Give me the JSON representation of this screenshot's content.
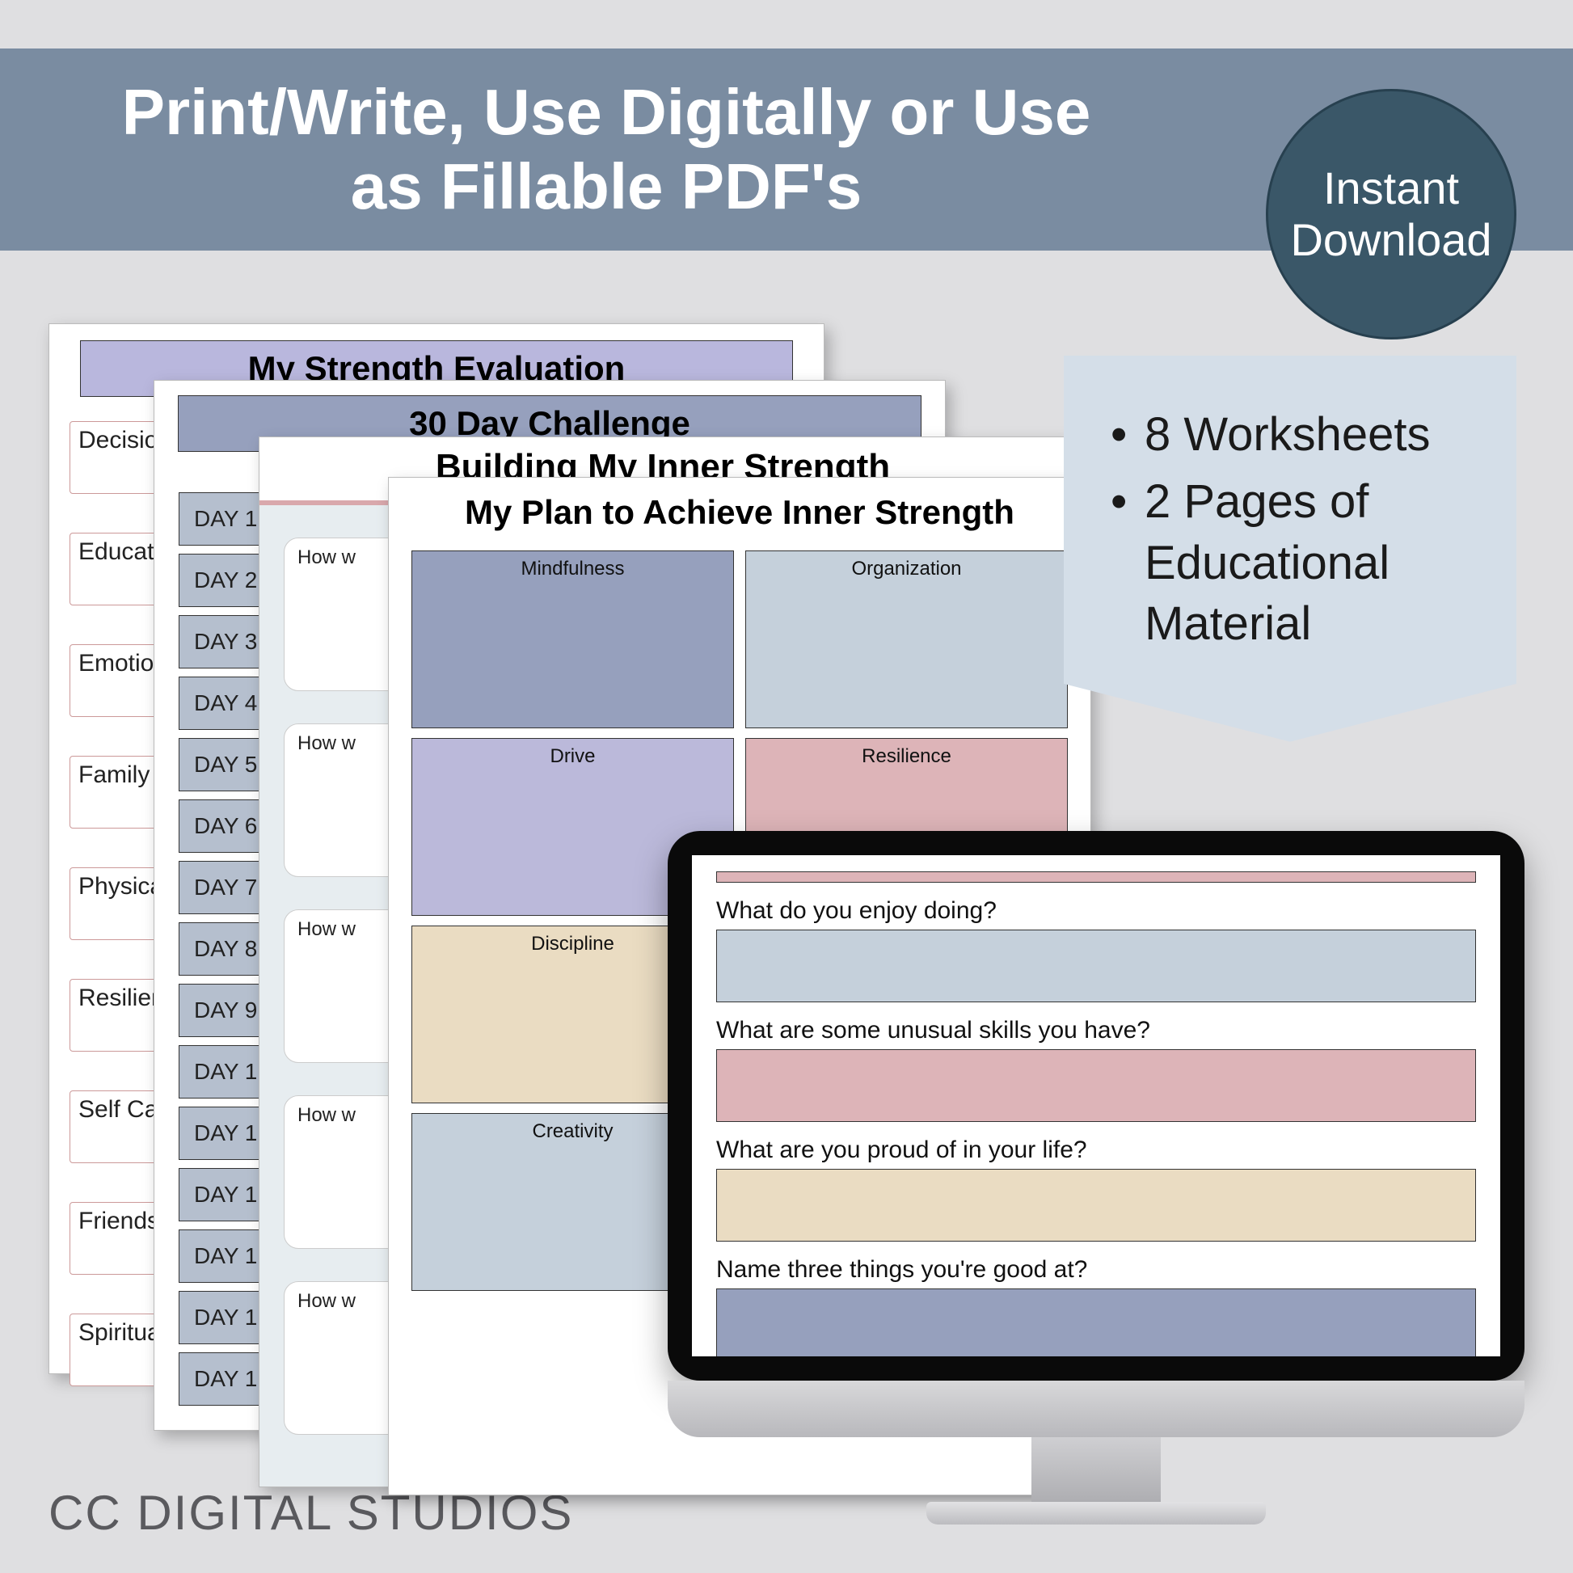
{
  "banner": {
    "text": "Print/Write, Use Digitally or Use as Fillable PDF's"
  },
  "badge": {
    "text": "Instant Download"
  },
  "bullets": {
    "items": [
      "8 Worksheets",
      "2 Pages of Educational Material"
    ]
  },
  "sheet1": {
    "title": "My Strength Evaluation",
    "header_bg": "#b9b7dd",
    "rows": [
      "Decision",
      "Educatio",
      "Emotion",
      "Family",
      "Physical/",
      "Resilienc",
      "Self Care",
      "Friends/",
      "Spiritual/"
    ]
  },
  "sheet2": {
    "title": "30 Day Challenge",
    "header_bg": "#96a0bd",
    "day_bg": "#b5bfce",
    "days": [
      "DAY 1",
      "DAY 2",
      "DAY 3",
      "DAY 4",
      "DAY 5",
      "DAY 6",
      "DAY 7",
      "DAY 8",
      "DAY 9",
      "DAY 1",
      "DAY 1",
      "DAY 1",
      "DAY 1",
      "DAY 1",
      "DAY 1"
    ]
  },
  "sheet3": {
    "title": "Building My Inner Strength",
    "accent": "#d9a8ac",
    "page_bg": "#e7edf0",
    "blocks": [
      "How w",
      "How w",
      "How w",
      "How w",
      "How w"
    ]
  },
  "sheet4": {
    "title": "My Plan to Achieve Inner Strength",
    "cells": [
      {
        "label": "Mindfulness",
        "color": "#96a0bd"
      },
      {
        "label": "Organization",
        "color": "#c5d0db"
      },
      {
        "label": "Drive",
        "color": "#bbb9da"
      },
      {
        "label": "Resilience",
        "color": "#ddb4b8"
      },
      {
        "label": "Discipline",
        "color": "#eadcc2"
      },
      {
        "label": "",
        "color": "#ffffff"
      },
      {
        "label": "Creativity",
        "color": "#c5d0db"
      }
    ]
  },
  "monitor": {
    "top_bar_color": "#ddb4b8",
    "questions": [
      {
        "q": "What do you enjoy doing?",
        "color": "#c5d0db"
      },
      {
        "q": "What are some unusual skills you have?",
        "color": "#ddb4b8"
      },
      {
        "q": "What are you proud of in your life?",
        "color": "#eadcc2"
      },
      {
        "q": "Name three things you're good at?",
        "color": "#96a0bd"
      }
    ]
  },
  "brand": "CC DIGITAL STUDIOS"
}
